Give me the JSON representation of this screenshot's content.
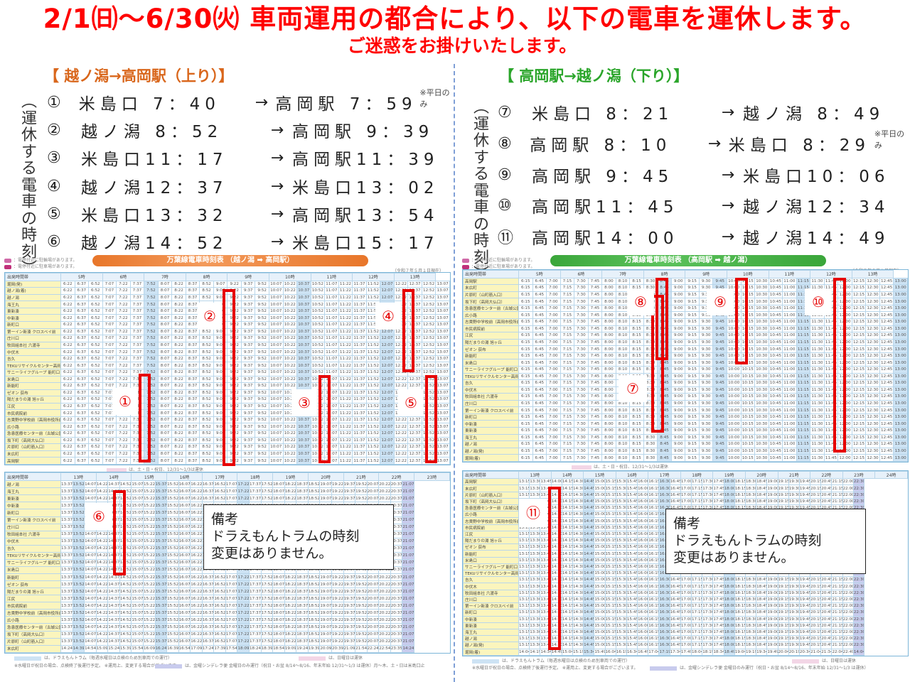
{
  "headline": "2/1㈰～6/30㈫ 車両運用の都合により、以下の電車を運休します。",
  "subline": "ご迷惑をお掛けいたします。",
  "vertical_label": "︵運休する電車の時刻︶",
  "up": {
    "title": "【 越ノ潟→高岡駅（上り）】",
    "trips": [
      {
        "num": "①",
        "from": "米島口 7：40",
        "to": "高岡駅 7：59",
        "note": "※平日のみ"
      },
      {
        "num": "②",
        "from": "越ノ潟 8：52",
        "to": "高岡駅 9：39",
        "note": ""
      },
      {
        "num": "③",
        "from": "米島口11：17",
        "to": "高岡駅11：39",
        "note": ""
      },
      {
        "num": "④",
        "from": "越ノ潟12：37",
        "to": "米島口13：02",
        "note": ""
      },
      {
        "num": "⑤",
        "from": "米島口13：32",
        "to": "高岡駅13：54",
        "note": ""
      },
      {
        "num": "⑥",
        "from": "越ノ潟14：52",
        "to": "米島口15：17",
        "note": ""
      }
    ],
    "banner": "万葉線電車時刻表 （越ノ潟 ➡ 高岡駅）",
    "as_of": "（令和７年５月１日現在）",
    "legend_cycle": "：電停付近に駐輪場があります。",
    "legend_car": "：電停付近に駐車場があります。",
    "table_am": {
      "hours": [
        "出発時間帯",
        "5時",
        "6時",
        "7時",
        "8時",
        "9時",
        "10時",
        "11時",
        "12時",
        "13時"
      ],
      "stations": [
        "堀岡(発)",
        "越ノ潟(着)",
        "越ノ潟",
        "海王丸",
        "東新湊",
        "中新湊",
        "新町口",
        "第一イン新湊 クロスベイ前",
        "庄川口",
        "牧田組本社 六渡寺",
        "中伏木",
        "吉久",
        "TEKUリサイクルセンター高岡 新吉久",
        "サニーライフグループ 能町口",
        "米島口",
        "新能町",
        "ゼオン 荻布",
        "陽だまりの湯 旭ヶ丘",
        "江尻",
        "市民病院前",
        "志貴野中学校前（高岡市役所前）",
        "広小路",
        "急患医療センター前（古城公園西口）",
        "坂下町（高岡大仏口）",
        "片原町（山町筋入口）",
        "末広町",
        "高岡駅"
      ],
      "sample_row": [
        "6:22",
        "6:37",
        "6:52",
        "7:07",
        "7:22",
        "7:37",
        "7:52",
        "8:07",
        "8:22",
        "8:37",
        "8:52",
        "9:07",
        "9:22",
        "9:37",
        "9:52",
        "10:07",
        "10:22",
        "10:37",
        "10:52",
        "11:07",
        "11:22",
        "11:37",
        "11:52",
        "12:07",
        "12:22",
        "12:37",
        "12:52",
        "13:07",
        "13:22"
      ]
    },
    "table_pm": {
      "hours": [
        "出発時間帯",
        "13時",
        "14時",
        "15時",
        "16時",
        "17時",
        "18時",
        "19時",
        "20時",
        "21時",
        "22時",
        "23時"
      ],
      "sample_row": [
        "13:37",
        "13:52",
        "14:07",
        "14:22",
        "14:37",
        "14:52",
        "15:07",
        "15:22",
        "15:37",
        "15:52",
        "16:07",
        "16:22",
        "16:37",
        "16:52",
        "17:07",
        "17:22",
        "17:37",
        "17:52",
        "18:07",
        "18:22",
        "18:37",
        "18:52",
        "19:07",
        "19:22",
        "19:37",
        "19:52",
        "20:07",
        "20:22",
        "20:37",
        "21:07",
        "21:37",
        "22:07",
        "22:52"
      ],
      "last_row": [
        "14:24",
        "14:39",
        "14:54",
        "15:09",
        "15:24",
        "15:39",
        "15:54",
        "16:09",
        "16:24",
        "16:39",
        "16:54",
        "17:09",
        "17:24",
        "17:39",
        "17:54",
        "18:09",
        "18:24",
        "18:39",
        "18:54",
        "19:09",
        "19:24",
        "19:39",
        "20:09",
        "20:39",
        "21:09",
        "21:54",
        "22:24",
        "22:54",
        "23:35"
      ]
    },
    "pink_note": "は、土・日・祝日、12/31〜1/3は運休",
    "foot1": "は、ドラえもんトラム（毎週水曜日は点検のため別車両での運行）",
    "foot2": "※水曜日が祝日の場合、点検終了後運行予定。 ※運用上、変更する場合がございます。",
    "foot3": "は、金曜シンデレラ便 金曜日のみ運行（祝日・お盆 8/14〜8/16、年末年始 12/31〜1/3 は運休）月〜木、土・日は米島口止",
    "foot4": "は、日曜日は運休"
  },
  "down": {
    "title": "【 高岡駅→越ノ潟（下り）】",
    "trips": [
      {
        "num": "⑦",
        "from": "米島口 8：21",
        "to": "越ノ潟 8：49",
        "note": ""
      },
      {
        "num": "⑧",
        "from": "高岡駅 8：10",
        "to": "米島口 8：29",
        "note": "※平日のみ"
      },
      {
        "num": "⑨",
        "from": "高岡駅 9：45",
        "to": "米島口10：06",
        "note": ""
      },
      {
        "num": "⑩",
        "from": "高岡駅11：45",
        "to": "越ノ潟12：34",
        "note": ""
      },
      {
        "num": "⑪",
        "from": "高岡駅14：00",
        "to": "越ノ潟14：49",
        "note": ""
      }
    ],
    "banner": "万葉線電車時刻表 （高岡駅 ➡ 越ノ潟）",
    "as_of": "（令和７年５月１日現在）",
    "legend_cycle": "：電停付近に駐輪場があります。",
    "legend_car": "：電停付近に駐車場があります。",
    "table_am": {
      "hours": [
        "出発時間帯",
        "5時",
        "6時",
        "7時",
        "8時",
        "9時",
        "10時",
        "11時",
        "12時",
        "13時"
      ],
      "stations": [
        "高岡駅",
        "末広町",
        "片原町（山町筋入口）",
        "坂下町（高岡大仏口）",
        "急患医療センター前（古城公園西口）",
        "広小路",
        "志貴野中学校前（高岡市役所前）",
        "市民病院前",
        "江尻",
        "陽だまりの湯 旭ヶ丘",
        "ゼオン 荻布",
        "新能町",
        "米島口",
        "サニーライフグループ 能町口",
        "TEKUリサイクルセンター高岡 新吉久",
        "吉久",
        "中伏木",
        "牧田組本社 六渡寺",
        "庄川口",
        "第一イン新湊 クロスベイ前",
        "新町口",
        "中新湊",
        "東新湊",
        "海王丸",
        "越ノ潟",
        "越ノ潟(発)",
        "堀岡(着)"
      ],
      "sample_row": [
        "6:15",
        "6:45",
        "7:00",
        "7:15",
        "7:30",
        "7:45",
        "8:00",
        "8:10",
        "8:15",
        "8:30",
        "8:45",
        "9:00",
        "9:15",
        "9:30",
        "9:45",
        "10:00",
        "10:15",
        "10:30",
        "10:45",
        "11:00",
        "11:15",
        "11:30",
        "11:45",
        "12:00",
        "12:15",
        "12:30",
        "12:45",
        "13:00"
      ]
    },
    "table_pm": {
      "hours": [
        "出発時間帯",
        "13時",
        "14時",
        "15時",
        "16時",
        "17時",
        "18時",
        "19時",
        "20時",
        "21時",
        "22時",
        "23時",
        "24時"
      ],
      "sample_row": [
        "13:15",
        "13:30",
        "13:45",
        "14:00",
        "14:15",
        "14:30",
        "14:45",
        "15:00",
        "15:15",
        "15:30",
        "15:45",
        "16:00",
        "16:15",
        "16:30",
        "16:45",
        "17:00",
        "17:15",
        "17:30",
        "17:45",
        "18:00",
        "18:15",
        "18:30",
        "18:45",
        "19:00",
        "19:15",
        "19:30",
        "19:45",
        "20:15",
        "20:45",
        "21:15",
        "22:00",
        "22:30",
        "23:00",
        "24:00"
      ],
      "last_row": [
        "14:04",
        "14:19",
        "14:34",
        "14:49",
        "15:04",
        "15:19",
        "15:34",
        "15:49",
        "16:04",
        "16:19",
        "16:34",
        "16:49",
        "17:04",
        "17:19",
        "17:34",
        "17:49",
        "18:04",
        "18:19",
        "18:34",
        "18:49",
        "19:04",
        "19:19",
        "19:34",
        "19:49",
        "20:04",
        "20:19",
        "20:34",
        "21:04",
        "21:34",
        "22:04",
        "22:49"
      ]
    },
    "pink_note": "は、土・日・祝日、12/31〜1/3は運休",
    "foot1": "は、ドラえもんトラム（毎週水曜日は点検のため別車両での運行）",
    "foot2": "※水曜日が祝日の場合、点検終了後運行予定。 ※運用上、変更する場合がございます。",
    "foot3": "は、金曜シンデレラ便 金曜日のみ運行（祝日・お盆 8/14〜8/16、年末年始 12/31〜1/3 は運休）",
    "foot4": "は、日曜日は運休"
  },
  "remarks": {
    "title": "備考",
    "line1": "ドラえもんトラムの時刻",
    "line2": "変更はありません。"
  },
  "colors": {
    "headline": "#ff0000",
    "up_accent": "#d9661b",
    "down_accent": "#2aa52a",
    "highlight": "#e60000"
  }
}
